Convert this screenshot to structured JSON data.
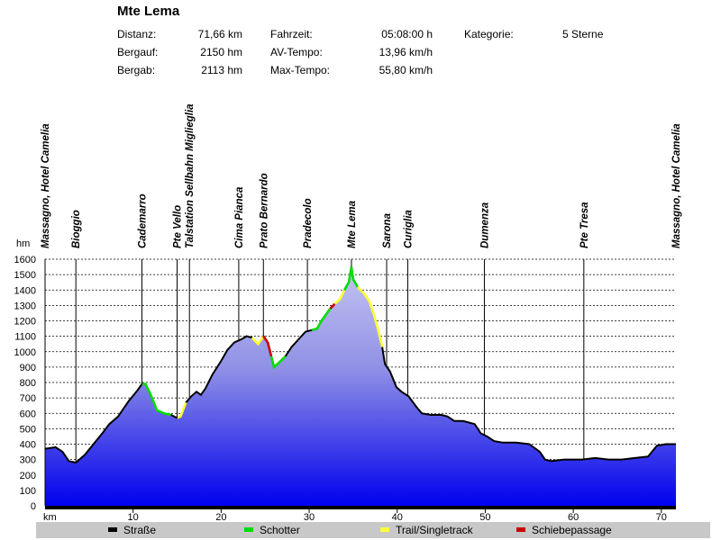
{
  "header": {
    "title": "Mte Lema",
    "stats": [
      {
        "label": "Distanz:",
        "value": "71,66 km"
      },
      {
        "label": "Bergauf:",
        "value": "2150 hm"
      },
      {
        "label": "Bergab:",
        "value": "2113 hm"
      },
      {
        "label": "Fahrzeit:",
        "value": "05:08:00 h"
      },
      {
        "label": "AV-Tempo:",
        "value": "13,96 km/h"
      },
      {
        "label": "Max-Tempo:",
        "value": "55,80 km/h"
      },
      {
        "label": "Kategorie:",
        "value": "5 Sterne"
      }
    ]
  },
  "colors": {
    "road": "#000000",
    "gravel": "#00dd00",
    "trail": "#ffff33",
    "push": "#cc0000",
    "fill_top": "#c8c8f2",
    "fill_bottom": "#0000ee",
    "legend_bg": "#c8c8c8"
  },
  "legend": [
    {
      "label": "Straße",
      "color": "#000000"
    },
    {
      "label": "Schotter",
      "color": "#00dd00"
    },
    {
      "label": "Trail/Singletrack",
      "color": "#ffff33"
    },
    {
      "label": "Schiebepassage",
      "color": "#cc0000"
    }
  ],
  "chart_data": {
    "type": "area",
    "xlabel": "km",
    "ylabel": "hm",
    "xlim": [
      0,
      71.66
    ],
    "ylim": [
      0,
      1600
    ],
    "xticks": [
      10,
      20,
      30,
      40,
      50,
      60,
      70
    ],
    "yticks": [
      0,
      100,
      200,
      300,
      400,
      500,
      600,
      700,
      800,
      900,
      1000,
      1100,
      1200,
      1300,
      1400,
      1500,
      1600
    ],
    "grid": true,
    "profile": [
      [
        0,
        370
      ],
      [
        1.2,
        380
      ],
      [
        2.0,
        350
      ],
      [
        2.7,
        290
      ],
      [
        3.5,
        280
      ],
      [
        4.5,
        330
      ],
      [
        5.5,
        400
      ],
      [
        6.5,
        470
      ],
      [
        7.3,
        530
      ],
      [
        8.3,
        580
      ],
      [
        9.5,
        680
      ],
      [
        10.5,
        750
      ],
      [
        11.0,
        790
      ],
      [
        11.4,
        790
      ],
      [
        12.0,
        720
      ],
      [
        12.7,
        620
      ],
      [
        13.5,
        600
      ],
      [
        14.3,
        590
      ],
      [
        15.0,
        570
      ],
      [
        15.4,
        580
      ],
      [
        16.0,
        670
      ],
      [
        16.6,
        710
      ],
      [
        17.2,
        740
      ],
      [
        17.7,
        720
      ],
      [
        18.2,
        760
      ],
      [
        19.0,
        850
      ],
      [
        20.0,
        940
      ],
      [
        20.7,
        1010
      ],
      [
        21.5,
        1060
      ],
      [
        22.3,
        1080
      ],
      [
        22.9,
        1100
      ],
      [
        23.5,
        1090
      ],
      [
        24.2,
        1050
      ],
      [
        24.8,
        1100
      ],
      [
        25.3,
        1060
      ],
      [
        25.7,
        970
      ],
      [
        26.0,
        900
      ],
      [
        26.6,
        930
      ],
      [
        27.3,
        970
      ],
      [
        28.0,
        1030
      ],
      [
        28.8,
        1080
      ],
      [
        29.6,
        1130
      ],
      [
        30.3,
        1140
      ],
      [
        30.9,
        1150
      ],
      [
        31.4,
        1200
      ],
      [
        31.9,
        1240
      ],
      [
        32.4,
        1280
      ],
      [
        32.9,
        1310
      ],
      [
        33.5,
        1340
      ],
      [
        34.0,
        1400
      ],
      [
        34.5,
        1450
      ],
      [
        34.8,
        1550
      ],
      [
        35.0,
        1470
      ],
      [
        35.5,
        1420
      ],
      [
        36.2,
        1380
      ],
      [
        36.8,
        1330
      ],
      [
        37.3,
        1250
      ],
      [
        37.8,
        1150
      ],
      [
        38.3,
        1030
      ],
      [
        38.6,
        920
      ],
      [
        39.2,
        870
      ],
      [
        39.9,
        770
      ],
      [
        40.5,
        740
      ],
      [
        41.3,
        710
      ],
      [
        42.2,
        640
      ],
      [
        42.8,
        600
      ],
      [
        43.8,
        590
      ],
      [
        45.0,
        590
      ],
      [
        45.7,
        580
      ],
      [
        46.5,
        550
      ],
      [
        47.5,
        550
      ],
      [
        48.8,
        530
      ],
      [
        49.5,
        470
      ],
      [
        50.2,
        450
      ],
      [
        51.0,
        420
      ],
      [
        52.0,
        410
      ],
      [
        53.5,
        410
      ],
      [
        55.0,
        400
      ],
      [
        56.2,
        350
      ],
      [
        56.8,
        300
      ],
      [
        57.5,
        290
      ],
      [
        59.0,
        300
      ],
      [
        61.0,
        300
      ],
      [
        62.5,
        310
      ],
      [
        64.0,
        300
      ],
      [
        65.5,
        300
      ],
      [
        67.0,
        310
      ],
      [
        68.5,
        320
      ],
      [
        69.5,
        390
      ],
      [
        70.5,
        400
      ],
      [
        71.66,
        400
      ]
    ],
    "surface_segments": [
      {
        "type": "gravel",
        "from": 11.0,
        "to": 14.3
      },
      {
        "type": "trail",
        "from": 15.0,
        "to": 16.0
      },
      {
        "type": "trail",
        "from": 23.5,
        "to": 24.8
      },
      {
        "type": "push",
        "from": 24.8,
        "to": 25.7
      },
      {
        "type": "gravel",
        "from": 25.7,
        "to": 27.3
      },
      {
        "type": "gravel",
        "from": 30.3,
        "to": 32.4
      },
      {
        "type": "push",
        "from": 32.4,
        "to": 32.9
      },
      {
        "type": "trail",
        "from": 32.9,
        "to": 34.0
      },
      {
        "type": "gravel",
        "from": 34.0,
        "to": 35.5
      },
      {
        "type": "trail",
        "from": 35.5,
        "to": 38.3
      }
    ],
    "waypoints": [
      {
        "km": 0,
        "label": "Massagno, Hotel Camelia"
      },
      {
        "km": 3.5,
        "label": "Bioggio"
      },
      {
        "km": 11.0,
        "label": "Cademarro"
      },
      {
        "km": 15.0,
        "label": "Pte Vello"
      },
      {
        "km": 16.4,
        "label": "Talstation Sellbahn Miglieglia"
      },
      {
        "km": 22.0,
        "label": "Cima Pianca"
      },
      {
        "km": 24.8,
        "label": "Prato Bernardo"
      },
      {
        "km": 29.8,
        "label": "Pradecolo"
      },
      {
        "km": 34.8,
        "label": "Mte Lema"
      },
      {
        "km": 38.8,
        "label": "Sarona"
      },
      {
        "km": 41.2,
        "label": "Curiglia"
      },
      {
        "km": 49.9,
        "label": "Dumenza"
      },
      {
        "km": 61.2,
        "label": "Pte Tresa"
      },
      {
        "km": 71.66,
        "label": "Massagno, Hotel Camelia"
      }
    ]
  }
}
